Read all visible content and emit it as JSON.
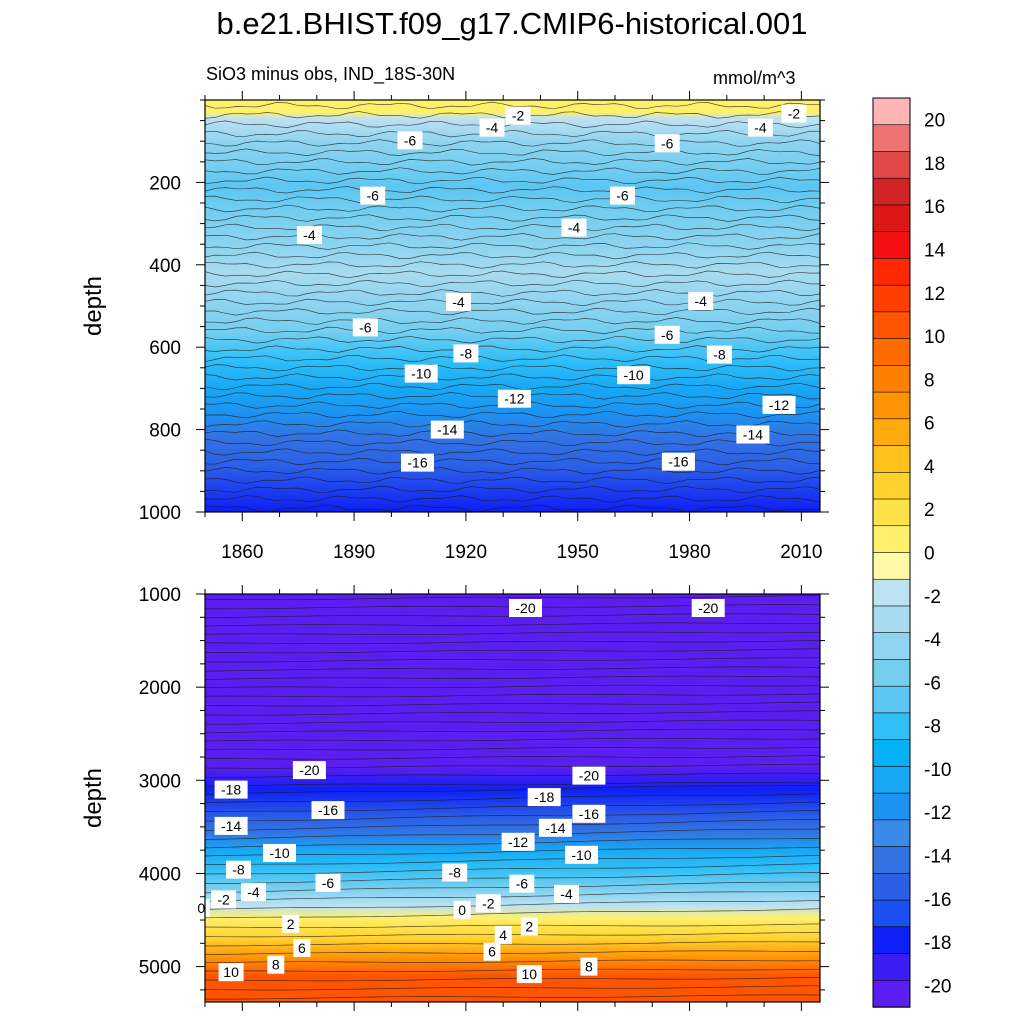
{
  "title": "b.e21.BHIST.f09_g17.CMIP6-historical.001",
  "subtitle_left": "SiO3 minus obs, IND_18S-30N",
  "units": "mmol/m^3",
  "chart_data": [
    {
      "type": "heatmap",
      "panel": "upper",
      "xlabel": "",
      "ylabel": "depth",
      "xlim": [
        1850,
        2015
      ],
      "ylim": [
        1000,
        0
      ],
      "x_ticks": [
        1860,
        1890,
        1920,
        1950,
        1980,
        2010
      ],
      "y_ticks": [
        200,
        400,
        600,
        800,
        1000
      ],
      "field": [
        {
          "depth": 0,
          "value": 0
        },
        {
          "depth": 30,
          "value": 0
        },
        {
          "depth": 45,
          "value": -2
        },
        {
          "depth": 100,
          "value": -4
        },
        {
          "depth": 160,
          "value": -6
        },
        {
          "depth": 210,
          "value": -7
        },
        {
          "depth": 280,
          "value": -6
        },
        {
          "depth": 360,
          "value": -4
        },
        {
          "depth": 420,
          "value": -3
        },
        {
          "depth": 490,
          "value": -4
        },
        {
          "depth": 560,
          "value": -6
        },
        {
          "depth": 630,
          "value": -8
        },
        {
          "depth": 700,
          "value": -10
        },
        {
          "depth": 760,
          "value": -12
        },
        {
          "depth": 820,
          "value": -14
        },
        {
          "depth": 890,
          "value": -16
        },
        {
          "depth": 1000,
          "value": -18
        }
      ],
      "contour_labels": [
        {
          "x": 1934,
          "depth": 38,
          "text": "-2"
        },
        {
          "x": 2008,
          "depth": 33,
          "text": "-2"
        },
        {
          "x": 1927,
          "depth": 67,
          "text": "-4"
        },
        {
          "x": 1999,
          "depth": 67,
          "text": "-4"
        },
        {
          "x": 1905,
          "depth": 98,
          "text": "-6"
        },
        {
          "x": 1974,
          "depth": 105,
          "text": "-6"
        },
        {
          "x": 1895,
          "depth": 232,
          "text": "-6"
        },
        {
          "x": 1962,
          "depth": 232,
          "text": "-6"
        },
        {
          "x": 1878,
          "depth": 328,
          "text": "-4"
        },
        {
          "x": 1949,
          "depth": 310,
          "text": "-4"
        },
        {
          "x": 1918,
          "depth": 490,
          "text": "-4"
        },
        {
          "x": 1983,
          "depth": 488,
          "text": "-4"
        },
        {
          "x": 1893,
          "depth": 552,
          "text": "-6"
        },
        {
          "x": 1974,
          "depth": 570,
          "text": "-6"
        },
        {
          "x": 1920,
          "depth": 615,
          "text": "-8"
        },
        {
          "x": 1988,
          "depth": 618,
          "text": "-8"
        },
        {
          "x": 1908,
          "depth": 664,
          "text": "-10"
        },
        {
          "x": 1965,
          "depth": 668,
          "text": "-10"
        },
        {
          "x": 1933,
          "depth": 725,
          "text": "-12"
        },
        {
          "x": 2004,
          "depth": 740,
          "text": "-12"
        },
        {
          "x": 1915,
          "depth": 800,
          "text": "-14"
        },
        {
          "x": 1997,
          "depth": 812,
          "text": "-14"
        },
        {
          "x": 1907,
          "depth": 880,
          "text": "-16"
        },
        {
          "x": 1977,
          "depth": 878,
          "text": "-16"
        }
      ]
    },
    {
      "type": "heatmap",
      "panel": "lower",
      "xlabel": "",
      "ylabel": "depth",
      "xlim": [
        1850,
        2015
      ],
      "ylim": [
        5380,
        1000
      ],
      "x_ticks": [
        1860,
        1890,
        1920,
        1950,
        1980,
        2010
      ],
      "y_ticks": [
        1000,
        2000,
        3000,
        4000,
        5000
      ],
      "field": [
        {
          "depth": 1000,
          "value": -20
        },
        {
          "depth": 1150,
          "value": -20.5
        },
        {
          "depth": 2860,
          "value": -20.5
        },
        {
          "depth": 3100,
          "value": -18
        },
        {
          "depth": 3400,
          "value": -16
        },
        {
          "depth": 3550,
          "value": -14
        },
        {
          "depth": 3750,
          "value": -11
        },
        {
          "depth": 3950,
          "value": -8
        },
        {
          "depth": 4150,
          "value": -5
        },
        {
          "depth": 4350,
          "value": -2
        },
        {
          "depth": 4480,
          "value": 0
        },
        {
          "depth": 4700,
          "value": 3
        },
        {
          "depth": 4900,
          "value": 7
        },
        {
          "depth": 5100,
          "value": 10
        },
        {
          "depth": 5380,
          "value": 11
        }
      ],
      "contour_labels": [
        {
          "x": 1936,
          "depth": 1150,
          "text": "-20"
        },
        {
          "x": 1985,
          "depth": 1150,
          "text": "-20"
        },
        {
          "x": 1878,
          "depth": 2890,
          "text": "-20"
        },
        {
          "x": 1953,
          "depth": 2950,
          "text": "-20"
        },
        {
          "x": 1857,
          "depth": 3100,
          "text": "-18"
        },
        {
          "x": 1941,
          "depth": 3180,
          "text": "-18"
        },
        {
          "x": 1883,
          "depth": 3320,
          "text": "-16"
        },
        {
          "x": 1953,
          "depth": 3360,
          "text": "-16"
        },
        {
          "x": 1857,
          "depth": 3490,
          "text": "-14"
        },
        {
          "x": 1944,
          "depth": 3510,
          "text": "-14"
        },
        {
          "x": 1934,
          "depth": 3660,
          "text": "-12"
        },
        {
          "x": 1870,
          "depth": 3780,
          "text": "-10"
        },
        {
          "x": 1951,
          "depth": 3800,
          "text": "-10"
        },
        {
          "x": 1859,
          "depth": 3960,
          "text": "-8"
        },
        {
          "x": 1917,
          "depth": 3990,
          "text": "-8"
        },
        {
          "x": 1883,
          "depth": 4100,
          "text": "-6"
        },
        {
          "x": 1935,
          "depth": 4110,
          "text": "-6"
        },
        {
          "x": 1863,
          "depth": 4200,
          "text": "-4"
        },
        {
          "x": 1947,
          "depth": 4220,
          "text": "-4"
        },
        {
          "x": 1855,
          "depth": 4280,
          "text": "-2"
        },
        {
          "x": 1926,
          "depth": 4320,
          "text": "-2"
        },
        {
          "x": 1849,
          "depth": 4370,
          "text": "0"
        },
        {
          "x": 1919,
          "depth": 4390,
          "text": "0"
        },
        {
          "x": 1873,
          "depth": 4540,
          "text": "2"
        },
        {
          "x": 1937,
          "depth": 4570,
          "text": "2"
        },
        {
          "x": 1930,
          "depth": 4660,
          "text": "4"
        },
        {
          "x": 1876,
          "depth": 4800,
          "text": "6"
        },
        {
          "x": 1927,
          "depth": 4840,
          "text": "6"
        },
        {
          "x": 1869,
          "depth": 4980,
          "text": "8"
        },
        {
          "x": 1953,
          "depth": 5000,
          "text": "8"
        },
        {
          "x": 1857,
          "depth": 5060,
          "text": "10"
        },
        {
          "x": 1937,
          "depth": 5080,
          "text": "10"
        }
      ]
    }
  ],
  "colorbar": {
    "levels": [
      -20,
      -18,
      -16,
      -14,
      -12,
      -10,
      -8,
      -6,
      -4,
      -2,
      0,
      2,
      4,
      6,
      8,
      10,
      12,
      14,
      16,
      18,
      20
    ],
    "colors": [
      "#5b1ef0",
      "#3a1df5",
      "#0f1ff7",
      "#1c4fef",
      "#2b5fe6",
      "#3372e2",
      "#3a8aea",
      "#1c93f0",
      "#17a8f5",
      "#05b2f5",
      "#30bff7",
      "#5cc6f2",
      "#76ceef",
      "#8fd4f0",
      "#a8dbf0",
      "#bde2f2",
      "#fff9a8",
      "#fff06b",
      "#ffe24a",
      "#ffd22e",
      "#ffc11b",
      "#ffaa0d",
      "#ff9405",
      "#ff8000",
      "#ff6b00",
      "#ff5500",
      "#ff3e00",
      "#ff2800",
      "#f21010",
      "#dd1616",
      "#d02323",
      "#e04848",
      "#ef7373",
      "#ffb5b5"
    ],
    "tick_labels": [
      "20",
      "18",
      "16",
      "14",
      "12",
      "10",
      "8",
      "6",
      "4",
      "2",
      "0",
      "-2",
      "-4",
      "-6",
      "-8",
      "-10",
      "-12",
      "-14",
      "-16",
      "-18",
      "-20"
    ]
  }
}
